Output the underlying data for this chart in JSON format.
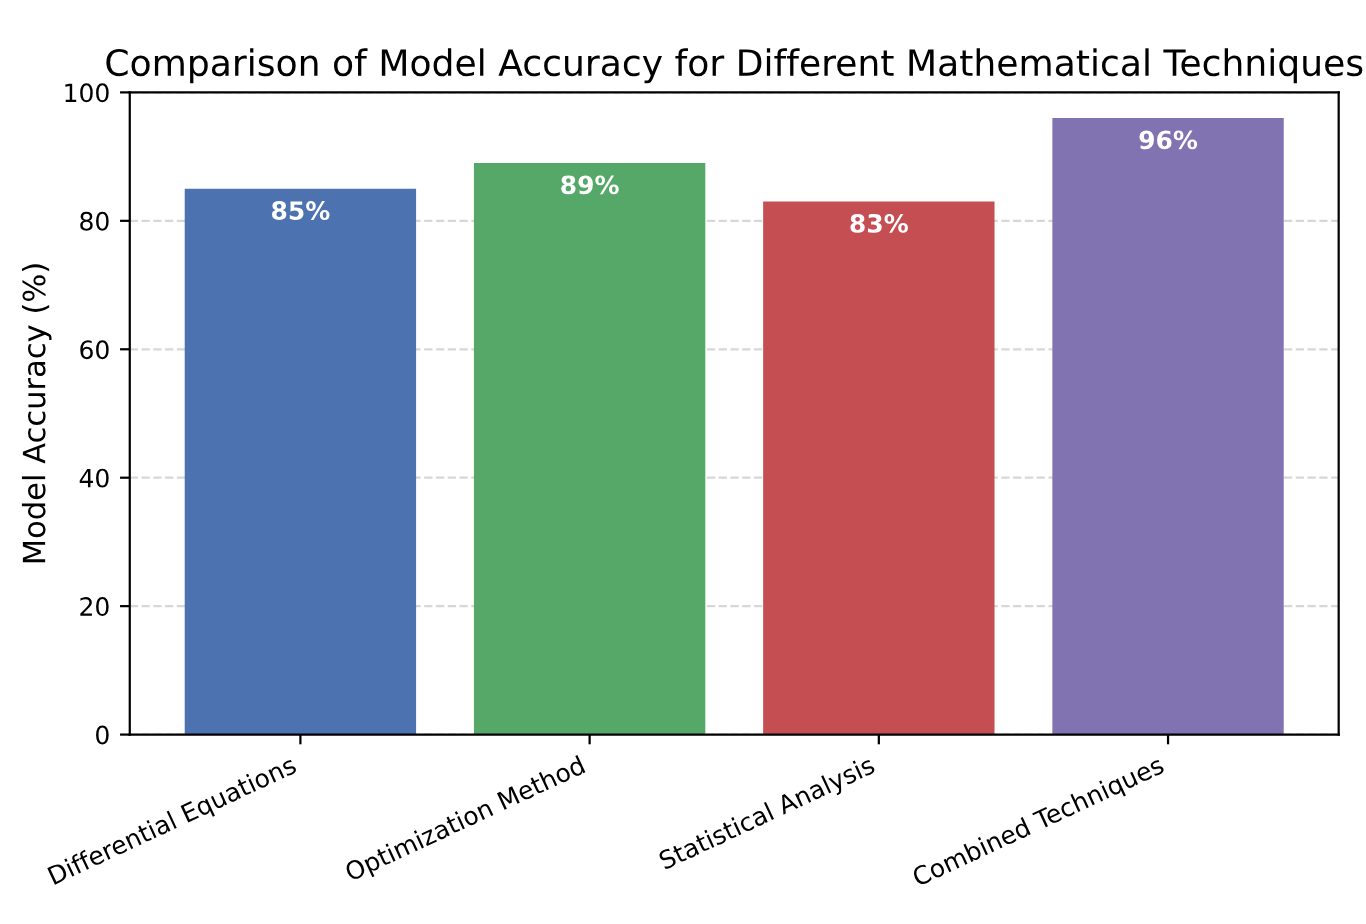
{
  "chart_data": {
    "type": "bar",
    "title": "Comparison of Model Accuracy for Different Mathematical Techniques",
    "ylabel": "Model Accuracy (%)",
    "categories": [
      "Differential Equations",
      "Optimization Method",
      "Statistical Analysis",
      "Combined Techniques"
    ],
    "values": [
      85,
      89,
      83,
      96
    ],
    "colors": [
      "#4c72b0",
      "#55a868",
      "#c44e52",
      "#8172b2"
    ],
    "value_labels": [
      "85%",
      "89%",
      "83%",
      "96%"
    ],
    "ylim": [
      0,
      100
    ],
    "yticks": [
      0,
      20,
      40,
      60,
      80,
      100
    ],
    "grid": "y"
  }
}
